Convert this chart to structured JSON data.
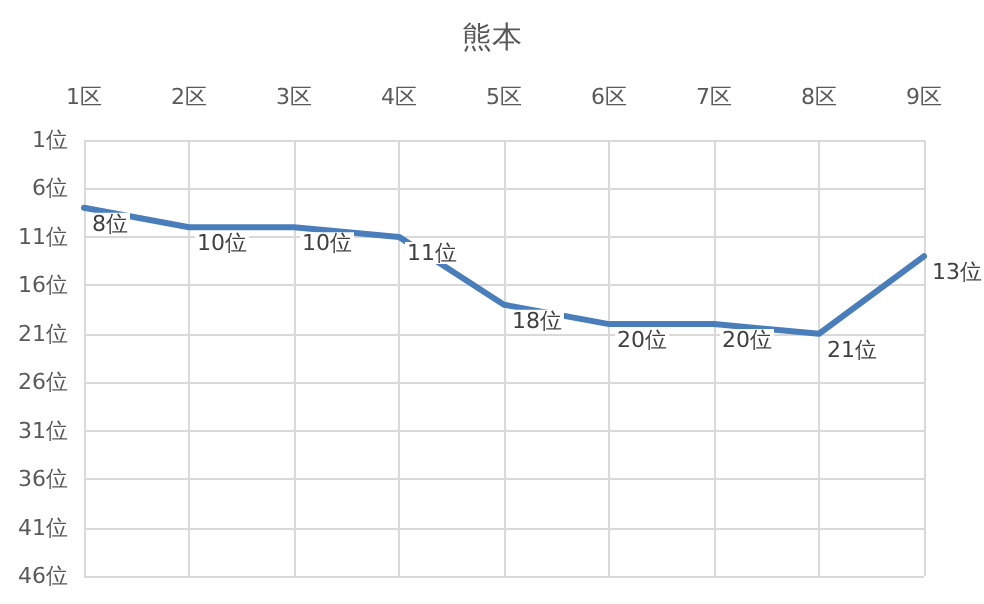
{
  "chart_data": {
    "type": "line",
    "title": "熊本",
    "categories": [
      "1区",
      "2区",
      "3区",
      "4区",
      "5区",
      "6区",
      "7区",
      "8区",
      "9区"
    ],
    "series": [
      {
        "color": "#4a7ebb",
        "values": [
          8,
          10,
          10,
          11,
          18,
          20,
          20,
          21,
          13
        ],
        "value_labels": [
          "8位",
          "10位",
          "10位",
          "11位",
          "18位",
          "20位",
          "20位",
          "21位",
          "13位"
        ]
      }
    ],
    "ylim": [
      46,
      1
    ],
    "yticks": [
      {
        "value": 1,
        "label": "1位"
      },
      {
        "value": 6,
        "label": "6位"
      },
      {
        "value": 11,
        "label": "11位"
      },
      {
        "value": 16,
        "label": "16位"
      },
      {
        "value": 21,
        "label": "21位"
      },
      {
        "value": 26,
        "label": "26位"
      },
      {
        "value": 31,
        "label": "31位"
      },
      {
        "value": 36,
        "label": "36位"
      },
      {
        "value": 41,
        "label": "41位"
      },
      {
        "value": 46,
        "label": "46位"
      }
    ],
    "grid": true,
    "marker": "none",
    "line_style": "solid"
  }
}
